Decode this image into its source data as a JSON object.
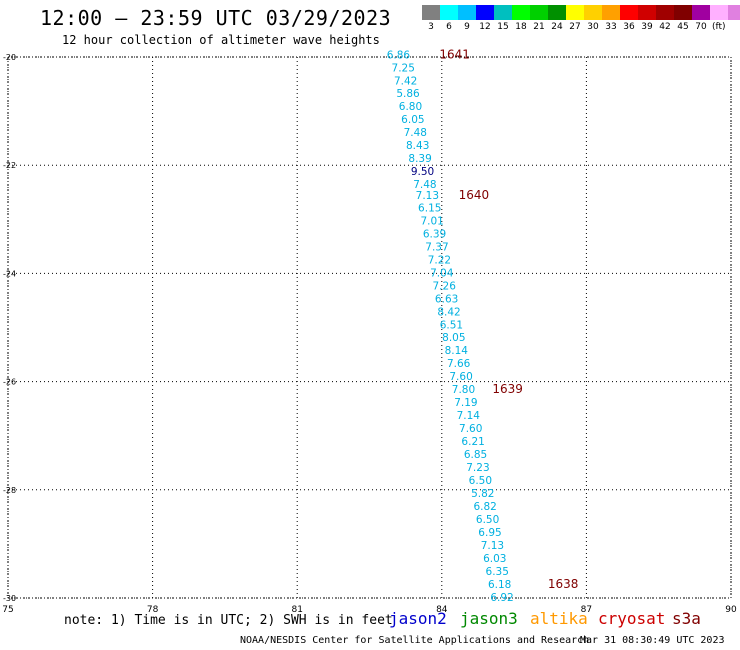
{
  "header": {
    "title": "12:00 – 23:59 UTC 03/29/2023",
    "subtitle": "12 hour collection of altimeter wave heights"
  },
  "colorbar": {
    "colors": [
      "#808080",
      "#00ffff",
      "#00bfff",
      "#0000ff",
      "#00bfbf",
      "#00ff00",
      "#00d000",
      "#009000",
      "#ffff00",
      "#ffd000",
      "#ffa000",
      "#ff0000",
      "#d00000",
      "#a00000",
      "#800000",
      "#a000a0",
      "#ffb0ff",
      "#e080e0",
      "#000000"
    ],
    "labels": [
      "3",
      "6",
      "9",
      "12",
      "15",
      "18",
      "21",
      "24",
      "27",
      "30",
      "33",
      "36",
      "39",
      "42",
      "45",
      "70"
    ],
    "unit": "(ft)"
  },
  "chart_data": {
    "type": "scatter",
    "x_ticks": [
      "75",
      "78",
      "81",
      "84",
      "87",
      "90"
    ],
    "y_ticks": [
      "-20",
      "-22",
      "-24",
      "-26",
      "-28",
      "-30"
    ],
    "xlim": [
      75,
      90
    ],
    "ylim": [
      -30,
      -20
    ],
    "grid": true,
    "point_color": "#00b0e0",
    "point_highlight_color": "#000080",
    "pass_color": "#800000",
    "points": [
      {
        "lon": 83.1,
        "lat": -19.95,
        "v": "6.86"
      },
      {
        "lon": 83.2,
        "lat": -20.19,
        "v": "7.25"
      },
      {
        "lon": 83.25,
        "lat": -20.43,
        "v": "7.42"
      },
      {
        "lon": 83.3,
        "lat": -20.67,
        "v": "5.86"
      },
      {
        "lon": 83.35,
        "lat": -20.91,
        "v": "6.80"
      },
      {
        "lon": 83.4,
        "lat": -21.15,
        "v": "6.05"
      },
      {
        "lon": 83.45,
        "lat": -21.39,
        "v": "7.48"
      },
      {
        "lon": 83.5,
        "lat": -21.63,
        "v": "8.43"
      },
      {
        "lon": 83.55,
        "lat": -21.87,
        "v": "8.39"
      },
      {
        "lon": 83.6,
        "lat": -22.11,
        "v": "9.50",
        "hi": true
      },
      {
        "lon": 83.65,
        "lat": -22.35,
        "v": "7.48"
      },
      {
        "lon": 83.7,
        "lat": -22.55,
        "v": "7.13"
      },
      {
        "lon": 83.75,
        "lat": -22.78,
        "v": "6.15"
      },
      {
        "lon": 83.8,
        "lat": -23.02,
        "v": "7.01"
      },
      {
        "lon": 83.85,
        "lat": -23.26,
        "v": "6.39"
      },
      {
        "lon": 83.9,
        "lat": -23.5,
        "v": "7.37"
      },
      {
        "lon": 83.95,
        "lat": -23.74,
        "v": "7.22"
      },
      {
        "lon": 84.0,
        "lat": -23.98,
        "v": "7.04"
      },
      {
        "lon": 84.05,
        "lat": -24.22,
        "v": "7.26"
      },
      {
        "lon": 84.1,
        "lat": -24.46,
        "v": "6.63"
      },
      {
        "lon": 84.15,
        "lat": -24.7,
        "v": "8.42"
      },
      {
        "lon": 84.2,
        "lat": -24.94,
        "v": "6.51"
      },
      {
        "lon": 84.25,
        "lat": -25.18,
        "v": "8.05"
      },
      {
        "lon": 84.3,
        "lat": -25.42,
        "v": "8.14"
      },
      {
        "lon": 84.35,
        "lat": -25.66,
        "v": "7.66"
      },
      {
        "lon": 84.4,
        "lat": -25.9,
        "v": "7.60"
      },
      {
        "lon": 84.45,
        "lat": -26.14,
        "v": "7.80"
      },
      {
        "lon": 84.5,
        "lat": -26.38,
        "v": "7.19"
      },
      {
        "lon": 84.55,
        "lat": -26.62,
        "v": "7.14"
      },
      {
        "lon": 84.6,
        "lat": -26.86,
        "v": "7.60"
      },
      {
        "lon": 84.65,
        "lat": -27.1,
        "v": "6.21"
      },
      {
        "lon": 84.7,
        "lat": -27.34,
        "v": "6.85"
      },
      {
        "lon": 84.75,
        "lat": -27.58,
        "v": "7.23"
      },
      {
        "lon": 84.8,
        "lat": -27.82,
        "v": "6.50"
      },
      {
        "lon": 84.85,
        "lat": -28.06,
        "v": "5.82"
      },
      {
        "lon": 84.9,
        "lat": -28.3,
        "v": "6.82"
      },
      {
        "lon": 84.95,
        "lat": -28.54,
        "v": "6.50"
      },
      {
        "lon": 85.0,
        "lat": -28.78,
        "v": "6.95"
      },
      {
        "lon": 85.05,
        "lat": -29.02,
        "v": "7.13"
      },
      {
        "lon": 85.1,
        "lat": -29.26,
        "v": "6.03"
      },
      {
        "lon": 85.15,
        "lat": -29.5,
        "v": "6.35"
      },
      {
        "lon": 85.2,
        "lat": -29.74,
        "v": "6.18"
      },
      {
        "lon": 85.25,
        "lat": -29.98,
        "v": "6.92"
      }
    ],
    "pass_labels": [
      {
        "lon": 83.95,
        "lat": -19.95,
        "label": "1641"
      },
      {
        "lon": 84.35,
        "lat": -22.55,
        "label": "1640"
      },
      {
        "lon": 85.05,
        "lat": -26.14,
        "label": "1639"
      },
      {
        "lon": 86.2,
        "lat": -29.74,
        "label": "1638"
      }
    ]
  },
  "footer": {
    "note": "note: 1) Time is in UTC; 2) SWH is in feet",
    "satellites": [
      {
        "name": "jason2",
        "color": "#0000cc"
      },
      {
        "name": "jason3",
        "color": "#008800"
      },
      {
        "name": "altika",
        "color": "#ff9900"
      },
      {
        "name": "cryosat",
        "color": "#cc0000"
      },
      {
        "name": "s3a",
        "color": "#800000"
      }
    ],
    "credit": "NOAA/NESDIS Center for Satellite Applications and Research",
    "timestamp": "Mar 31 08:30:49 UTC 2023"
  }
}
